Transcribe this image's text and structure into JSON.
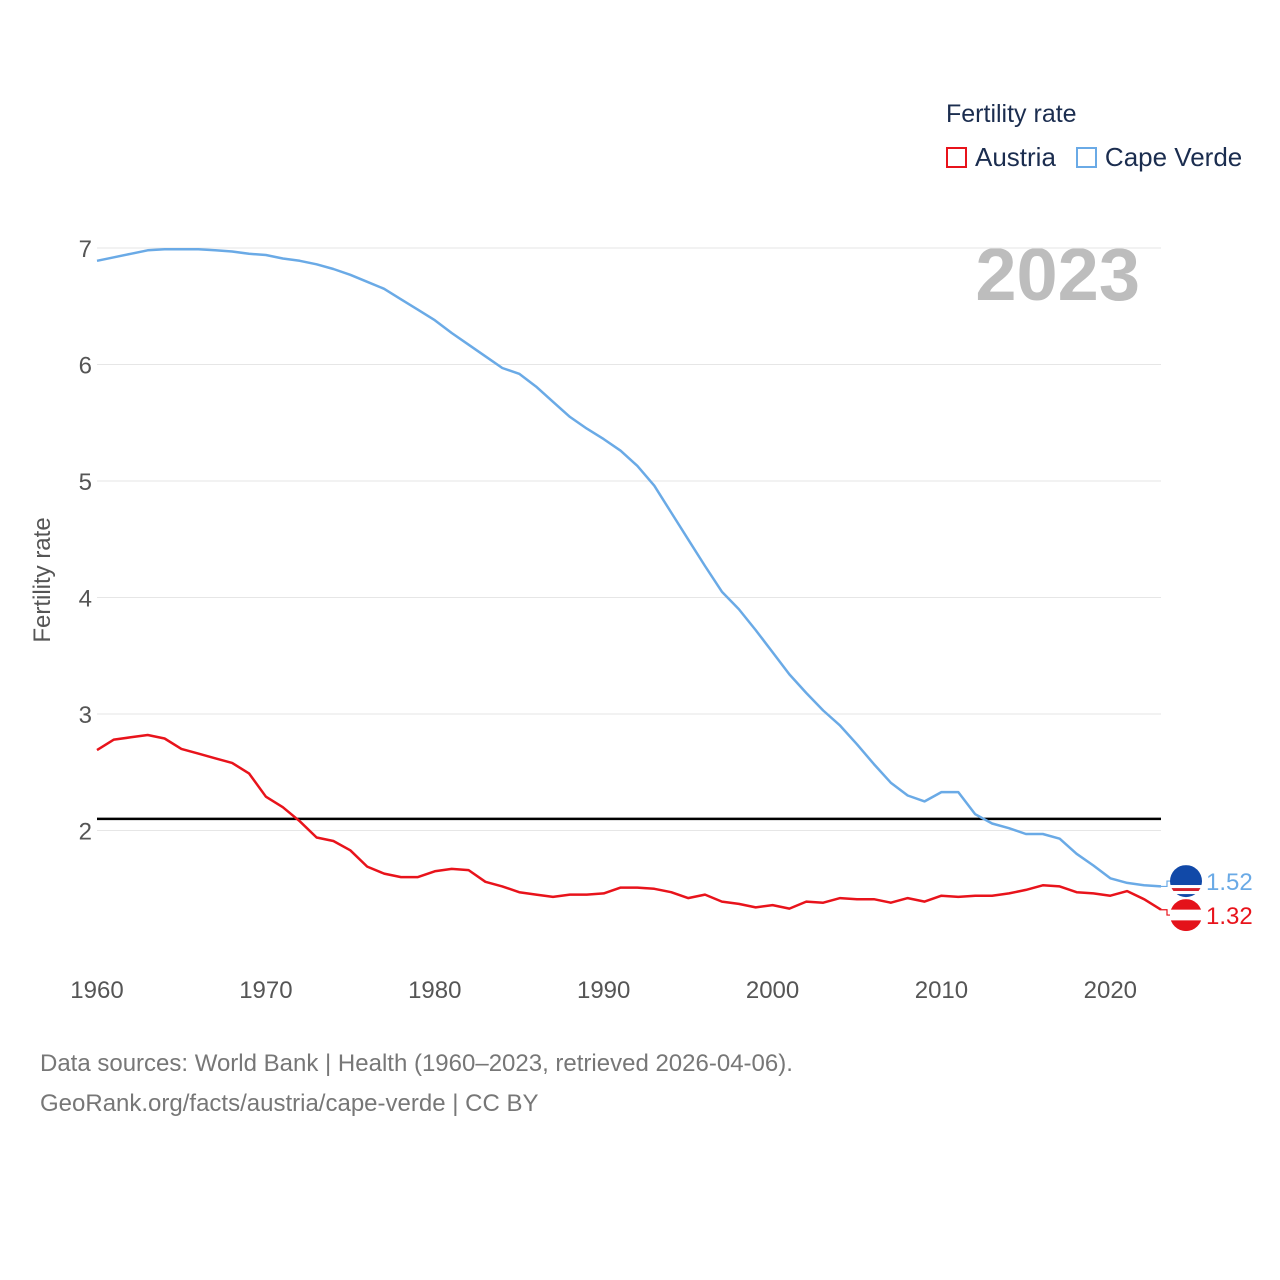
{
  "chart_data": {
    "type": "line",
    "title": "Fertility rate",
    "ylabel": "Fertility rate",
    "xlabel": "",
    "xlim": [
      1960,
      2023
    ],
    "ylim": [
      1.0,
      7.0
    ],
    "x_ticks": [
      1960,
      1970,
      1980,
      1990,
      2000,
      2010,
      2020
    ],
    "y_ticks": [
      2,
      3,
      4,
      5,
      6,
      7
    ],
    "reference_line": 2.1,
    "current_year": "2023",
    "legend": [
      "Austria",
      "Cape Verde"
    ],
    "x": [
      1960,
      1961,
      1962,
      1963,
      1964,
      1965,
      1966,
      1967,
      1968,
      1969,
      1970,
      1971,
      1972,
      1973,
      1974,
      1975,
      1976,
      1977,
      1978,
      1979,
      1980,
      1981,
      1982,
      1983,
      1984,
      1985,
      1986,
      1987,
      1988,
      1989,
      1990,
      1991,
      1992,
      1993,
      1994,
      1995,
      1996,
      1997,
      1998,
      1999,
      2000,
      2001,
      2002,
      2003,
      2004,
      2005,
      2006,
      2007,
      2008,
      2009,
      2010,
      2011,
      2012,
      2013,
      2014,
      2015,
      2016,
      2017,
      2018,
      2019,
      2020,
      2021,
      2022,
      2023
    ],
    "series": [
      {
        "name": "Austria",
        "color": "#e8131b",
        "end_label": "1.32",
        "values": [
          2.69,
          2.78,
          2.8,
          2.82,
          2.79,
          2.7,
          2.66,
          2.62,
          2.58,
          2.49,
          2.29,
          2.2,
          2.08,
          1.94,
          1.91,
          1.83,
          1.69,
          1.63,
          1.6,
          1.6,
          1.65,
          1.67,
          1.66,
          1.56,
          1.52,
          1.47,
          1.45,
          1.43,
          1.45,
          1.45,
          1.46,
          1.51,
          1.51,
          1.5,
          1.47,
          1.42,
          1.45,
          1.39,
          1.37,
          1.34,
          1.36,
          1.33,
          1.39,
          1.38,
          1.42,
          1.41,
          1.41,
          1.38,
          1.42,
          1.39,
          1.44,
          1.43,
          1.44,
          1.44,
          1.46,
          1.49,
          1.53,
          1.52,
          1.47,
          1.46,
          1.44,
          1.48,
          1.41,
          1.32
        ]
      },
      {
        "name": "Cape Verde",
        "color": "#6aaae6",
        "end_label": "1.52",
        "values": [
          6.89,
          6.92,
          6.95,
          6.98,
          6.99,
          6.99,
          6.99,
          6.98,
          6.97,
          6.95,
          6.94,
          6.91,
          6.89,
          6.86,
          6.82,
          6.77,
          6.71,
          6.65,
          6.56,
          6.47,
          6.38,
          6.27,
          6.17,
          6.07,
          5.97,
          5.92,
          5.81,
          5.68,
          5.55,
          5.45,
          5.36,
          5.26,
          5.13,
          4.96,
          4.73,
          4.5,
          4.27,
          4.05,
          3.9,
          3.72,
          3.53,
          3.34,
          3.18,
          3.03,
          2.9,
          2.74,
          2.57,
          2.41,
          2.3,
          2.25,
          2.33,
          2.33,
          2.14,
          2.06,
          2.02,
          1.97,
          1.97,
          1.93,
          1.8,
          1.7,
          1.59,
          1.55,
          1.53,
          1.52
        ]
      }
    ]
  },
  "legend": {
    "title": "Fertility rate",
    "items": [
      {
        "label": "Austria",
        "color": "#e8131b"
      },
      {
        "label": "Cape Verde",
        "color": "#6aaae6"
      }
    ]
  },
  "footer": {
    "line1": "Data sources: World Bank | Health (1960–2023, retrieved 2026-04-06).",
    "line2": "GeoRank.org/facts/austria/cape-verde | CC BY"
  }
}
